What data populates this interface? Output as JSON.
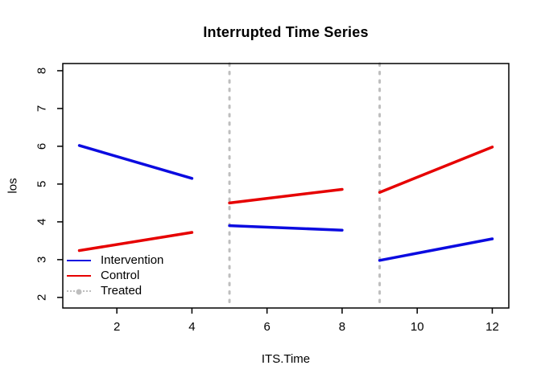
{
  "title": "Interrupted Time Series",
  "colors": {
    "intervention": "#0b0be0",
    "control": "#e60000",
    "treated": "#bebebe",
    "axis": "#000000"
  },
  "legend": {
    "items": [
      {
        "label": "Intervention",
        "color": "#0b0be0",
        "style": "solid",
        "marker": false
      },
      {
        "label": "Control",
        "color": "#e60000",
        "style": "solid",
        "marker": false
      },
      {
        "label": "Treated",
        "color": "#bebebe",
        "style": "dotted",
        "marker": true
      }
    ]
  },
  "chart_data": {
    "type": "line",
    "title": "Interrupted Time Series",
    "xlabel": "ITS.Time",
    "ylabel": "los",
    "xlim": [
      0.56,
      12.44
    ],
    "ylim": [
      1.72,
      8.19
    ],
    "xticks": [
      2,
      4,
      6,
      8,
      10,
      12
    ],
    "yticks": [
      2,
      3,
      4,
      5,
      6,
      7,
      8
    ],
    "grid": false,
    "legend_position": "bottom-left-inside",
    "series": [
      {
        "name": "Intervention",
        "color": "#0b0be0",
        "linewidth": 3.5,
        "segments": [
          [
            [
              1,
              6.02
            ],
            [
              4,
              5.15
            ]
          ],
          [
            [
              5,
              3.9
            ],
            [
              8,
              3.78
            ]
          ],
          [
            [
              9,
              2.98
            ],
            [
              12,
              3.55
            ]
          ]
        ]
      },
      {
        "name": "Control",
        "color": "#e60000",
        "linewidth": 3.5,
        "segments": [
          [
            [
              1,
              3.24
            ],
            [
              4,
              3.72
            ]
          ],
          [
            [
              5,
              4.5
            ],
            [
              8,
              4.86
            ]
          ],
          [
            [
              9,
              4.78
            ],
            [
              12,
              5.98
            ]
          ]
        ]
      }
    ],
    "vlines": {
      "name": "Treated",
      "x": [
        5,
        9
      ],
      "color": "#bebebe",
      "style": "dotted",
      "linewidth": 3
    }
  }
}
